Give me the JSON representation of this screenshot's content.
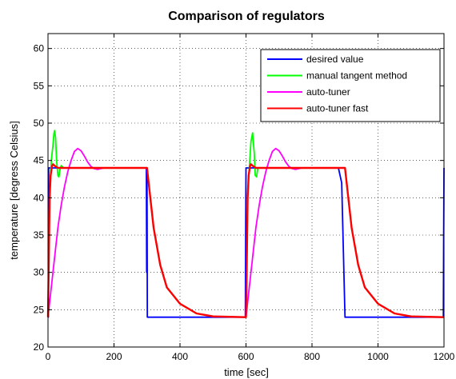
{
  "chart_data": {
    "type": "line",
    "title": "Comparison of regulators",
    "xlabel": "time [sec]",
    "ylabel": "temperature [degress Celsius]",
    "xlim": [
      0,
      1200
    ],
    "ylim": [
      20,
      62
    ],
    "xticks": [
      0,
      200,
      400,
      600,
      800,
      1000,
      1200
    ],
    "yticks": [
      20,
      25,
      30,
      35,
      40,
      45,
      50,
      55,
      60
    ],
    "grid": true,
    "legend_position": "top-right",
    "series": [
      {
        "name": "desired value",
        "color": "#0000ff",
        "points": [
          [
            0,
            24
          ],
          [
            1,
            24
          ],
          [
            2,
            44
          ],
          [
            298,
            44
          ],
          [
            299,
            30
          ],
          [
            300,
            44
          ],
          [
            301,
            24
          ],
          [
            598,
            24
          ],
          [
            599,
            35
          ],
          [
            600,
            44
          ],
          [
            880,
            44
          ],
          [
            890,
            42
          ],
          [
            900,
            24
          ],
          [
            1198,
            24
          ],
          [
            1199,
            35
          ],
          [
            1200,
            44
          ]
        ]
      },
      {
        "name": "manual tangent method",
        "color": "#00ff00",
        "points": [
          [
            0,
            24
          ],
          [
            5,
            40
          ],
          [
            10,
            45
          ],
          [
            15,
            47
          ],
          [
            18,
            48.6
          ],
          [
            20,
            49
          ],
          [
            23,
            48
          ],
          [
            26,
            45
          ],
          [
            30,
            43
          ],
          [
            33,
            42.8
          ],
          [
            37,
            44
          ],
          [
            40,
            44.3
          ],
          [
            48,
            44
          ],
          [
            300,
            44
          ],
          [
            310,
            40
          ],
          [
            320,
            36
          ],
          [
            340,
            31
          ],
          [
            360,
            28
          ],
          [
            400,
            25.8
          ],
          [
            450,
            24.5
          ],
          [
            500,
            24.1
          ],
          [
            600,
            24
          ],
          [
            605,
            40
          ],
          [
            610,
            44
          ],
          [
            615,
            47.5
          ],
          [
            620,
            48.7
          ],
          [
            625,
            46
          ],
          [
            628,
            43
          ],
          [
            632,
            42.8
          ],
          [
            636,
            44
          ],
          [
            645,
            44
          ],
          [
            900,
            44
          ],
          [
            910,
            40
          ],
          [
            920,
            36
          ],
          [
            940,
            31
          ],
          [
            960,
            28
          ],
          [
            1000,
            25.8
          ],
          [
            1050,
            24.5
          ],
          [
            1100,
            24.1
          ],
          [
            1200,
            24
          ]
        ]
      },
      {
        "name": "auto-tuner",
        "color": "#ff00ff",
        "points": [
          [
            0,
            24
          ],
          [
            5,
            26
          ],
          [
            10,
            28
          ],
          [
            20,
            32
          ],
          [
            30,
            36
          ],
          [
            40,
            39
          ],
          [
            50,
            41.5
          ],
          [
            60,
            43.5
          ],
          [
            70,
            45
          ],
          [
            80,
            46.2
          ],
          [
            90,
            46.6
          ],
          [
            100,
            46.3
          ],
          [
            110,
            45.6
          ],
          [
            120,
            44.8
          ],
          [
            130,
            44.2
          ],
          [
            140,
            43.9
          ],
          [
            150,
            43.8
          ],
          [
            160,
            43.9
          ],
          [
            170,
            44
          ],
          [
            300,
            44
          ],
          [
            310,
            40
          ],
          [
            320,
            36
          ],
          [
            340,
            31
          ],
          [
            360,
            28
          ],
          [
            400,
            25.8
          ],
          [
            450,
            24.5
          ],
          [
            500,
            24.1
          ],
          [
            600,
            24
          ],
          [
            605,
            26
          ],
          [
            610,
            28
          ],
          [
            620,
            32
          ],
          [
            630,
            36
          ],
          [
            640,
            39
          ],
          [
            650,
            41.5
          ],
          [
            660,
            43.5
          ],
          [
            670,
            45
          ],
          [
            680,
            46.2
          ],
          [
            690,
            46.6
          ],
          [
            700,
            46.3
          ],
          [
            710,
            45.6
          ],
          [
            720,
            44.8
          ],
          [
            730,
            44.2
          ],
          [
            740,
            43.9
          ],
          [
            750,
            43.8
          ],
          [
            760,
            43.9
          ],
          [
            770,
            44
          ],
          [
            900,
            44
          ],
          [
            910,
            40
          ],
          [
            920,
            36
          ],
          [
            940,
            31
          ],
          [
            960,
            28
          ],
          [
            1000,
            25.8
          ],
          [
            1050,
            24.5
          ],
          [
            1100,
            24.1
          ],
          [
            1200,
            24
          ]
        ]
      },
      {
        "name": "auto-tuner fast",
        "color": "#ff0000",
        "points": [
          [
            0,
            24
          ],
          [
            2,
            30
          ],
          [
            5,
            40
          ],
          [
            8,
            43
          ],
          [
            12,
            44.2
          ],
          [
            15,
            44.5
          ],
          [
            20,
            44.3
          ],
          [
            30,
            44
          ],
          [
            300,
            44
          ],
          [
            310,
            40
          ],
          [
            320,
            36
          ],
          [
            340,
            31
          ],
          [
            360,
            28
          ],
          [
            400,
            25.8
          ],
          [
            450,
            24.5
          ],
          [
            500,
            24.1
          ],
          [
            600,
            24
          ],
          [
            602,
            30
          ],
          [
            605,
            40
          ],
          [
            608,
            43
          ],
          [
            612,
            44.2
          ],
          [
            615,
            44.5
          ],
          [
            620,
            44.3
          ],
          [
            630,
            44
          ],
          [
            900,
            44
          ],
          [
            910,
            40
          ],
          [
            920,
            36
          ],
          [
            940,
            31
          ],
          [
            960,
            28
          ],
          [
            1000,
            25.8
          ],
          [
            1050,
            24.5
          ],
          [
            1100,
            24.1
          ],
          [
            1200,
            24
          ]
        ]
      }
    ]
  }
}
